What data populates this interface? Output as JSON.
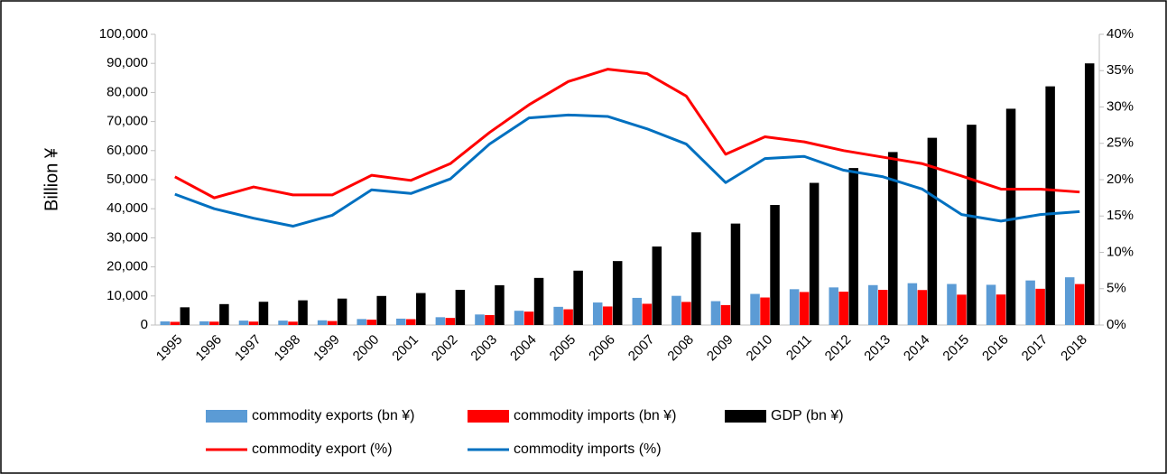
{
  "chart_data": {
    "type": "bar",
    "ylabel": "Billion ¥",
    "categories": [
      "1995",
      "1996",
      "1997",
      "1998",
      "1999",
      "2000",
      "2001",
      "2002",
      "2003",
      "2004",
      "2005",
      "2006",
      "2007",
      "2008",
      "2009",
      "2010",
      "2011",
      "2012",
      "2013",
      "2014",
      "2015",
      "2016",
      "2017",
      "2018"
    ],
    "series": [
      {
        "name": "commodity exports (bn ¥)",
        "type": "bar",
        "color": "#5b9bd5",
        "values": [
          1250,
          1280,
          1520,
          1520,
          1620,
          2060,
          2200,
          2690,
          3630,
          4910,
          6260,
          7750,
          9340,
          10040,
          8210,
          10700,
          12320,
          12940,
          13730,
          14390,
          14120,
          13840,
          15330,
          16420
        ]
      },
      {
        "name": "commodity imports (bn ¥)",
        "type": "bar",
        "color": "#ff0000",
        "values": [
          1100,
          1160,
          1180,
          1160,
          1370,
          1860,
          2020,
          2440,
          3420,
          4610,
          5410,
          6380,
          7310,
          7950,
          6860,
          9470,
          11360,
          11480,
          12100,
          12040,
          10450,
          10490,
          12470,
          14090
        ]
      },
      {
        "name": "GDP (bn ¥)",
        "type": "bar",
        "color": "#000000",
        "values": [
          6100,
          7200,
          8000,
          8500,
          9100,
          10000,
          11000,
          12100,
          13700,
          16200,
          18700,
          22000,
          27000,
          31900,
          34900,
          41300,
          48900,
          54000,
          59500,
          64400,
          68900,
          74400,
          82100,
          90000
        ]
      },
      {
        "name": "commodity export (%)",
        "type": "line",
        "axis": "y2",
        "color": "#ff0000",
        "values": [
          20.4,
          17.5,
          19.0,
          17.9,
          17.9,
          20.6,
          19.9,
          22.2,
          26.5,
          30.3,
          33.5,
          35.2,
          34.6,
          31.5,
          23.5,
          25.9,
          25.2,
          24.0,
          23.1,
          22.2,
          20.5,
          18.7,
          18.7,
          18.3
        ]
      },
      {
        "name": "commodity imports (%)",
        "type": "line",
        "axis": "y2",
        "color": "#0070c0",
        "values": [
          18.0,
          16.0,
          14.7,
          13.6,
          15.1,
          18.6,
          18.1,
          20.1,
          24.9,
          28.5,
          28.9,
          28.7,
          27.0,
          24.9,
          19.6,
          22.9,
          23.2,
          21.3,
          20.4,
          18.7,
          15.2,
          14.3,
          15.2,
          15.6
        ]
      }
    ],
    "ylim": [
      0,
      100000
    ],
    "yticks": [
      0,
      {
        "value": 10000,
        "label": "10,000"
      },
      {
        "value": 20000,
        "label": "20,000"
      },
      {
        "value": 30000,
        "label": "30,000"
      },
      {
        "value": 40000,
        "label": "40,000"
      },
      {
        "value": 50000,
        "label": "50,000"
      },
      {
        "value": 60000,
        "label": "60,000"
      },
      {
        "value": 70000,
        "label": "70,000"
      },
      {
        "value": 80000,
        "label": "80,000"
      },
      {
        "value": 90000,
        "label": "90,000"
      },
      {
        "value": 100000,
        "label": "100,000"
      }
    ],
    "y2lim": [
      0,
      40
    ],
    "y2ticks": [
      {
        "value": 0,
        "label": "0%"
      },
      {
        "value": 5,
        "label": "5%"
      },
      {
        "value": 10,
        "label": "10%"
      },
      {
        "value": 15,
        "label": "15%"
      },
      {
        "value": 20,
        "label": "20%"
      },
      {
        "value": 25,
        "label": "25%"
      },
      {
        "value": 30,
        "label": "30%"
      },
      {
        "value": 35,
        "label": "35%"
      },
      {
        "value": 40,
        "label": "40%"
      }
    ],
    "grid": false,
    "legend": "bottom"
  }
}
